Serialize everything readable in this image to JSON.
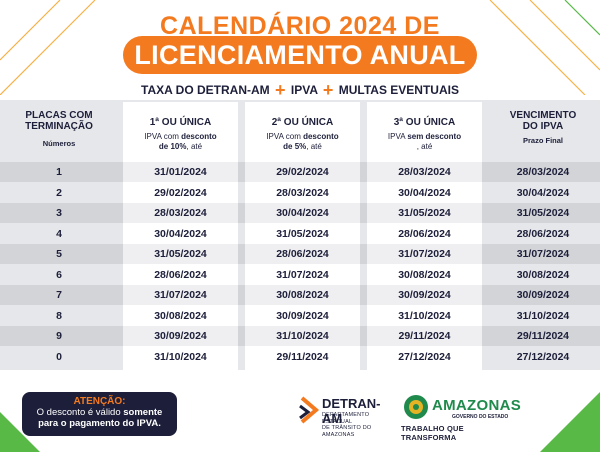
{
  "header": {
    "title_top": "CALENDÁRIO 2024 DE",
    "title_main": "LICENCIAMENTO ANUAL",
    "subtitle_parts": [
      "TAXA DO DETRAN-AM",
      "IPVA",
      "MULTAS EVENTUAIS"
    ],
    "plus": "+"
  },
  "columns": {
    "plate": {
      "title_l1": "PLACAS COM",
      "title_l2": "TERMINAÇÃO",
      "sub": "Números"
    },
    "c1": {
      "title": "1ª OU ÚNICA",
      "sub_pre": "IPVA com ",
      "sub_bold": "desconto",
      "sub_bold2": "de 10%",
      "sub_post": ", até"
    },
    "c2": {
      "title": "2ª OU ÚNICA",
      "sub_pre": "IPVA com ",
      "sub_bold": "desconto",
      "sub_bold2": "de 5%",
      "sub_post": ", até"
    },
    "c3": {
      "title": "3ª OU ÚNICA",
      "sub_pre": "IPVA ",
      "sub_bold": "sem desconto",
      "sub_bold2": "",
      "sub_post": ", até"
    },
    "venc": {
      "title_l1": "VENCIMENTO",
      "title_l2": "DO IPVA",
      "sub": "Prazo Final"
    }
  },
  "rows": [
    {
      "plate": "1",
      "c1": "31/01/2024",
      "c2": "29/02/2024",
      "c3": "28/03/2024",
      "venc": "28/03/2024"
    },
    {
      "plate": "2",
      "c1": "29/02/2024",
      "c2": "28/03/2024",
      "c3": "30/04/2024",
      "venc": "30/04/2024"
    },
    {
      "plate": "3",
      "c1": "28/03/2024",
      "c2": "30/04/2024",
      "c3": "31/05/2024",
      "venc": "31/05/2024"
    },
    {
      "plate": "4",
      "c1": "30/04/2024",
      "c2": "31/05/2024",
      "c3": "28/06/2024",
      "venc": "28/06/2024"
    },
    {
      "plate": "5",
      "c1": "31/05/2024",
      "c2": "28/06/2024",
      "c3": "31/07/2024",
      "venc": "31/07/2024"
    },
    {
      "plate": "6",
      "c1": "28/06/2024",
      "c2": "31/07/2024",
      "c3": "30/08/2024",
      "venc": "30/08/2024"
    },
    {
      "plate": "7",
      "c1": "31/07/2024",
      "c2": "30/08/2024",
      "c3": "30/09/2024",
      "venc": "30/09/2024"
    },
    {
      "plate": "8",
      "c1": "30/08/2024",
      "c2": "30/09/2024",
      "c3": "31/10/2024",
      "venc": "31/10/2024"
    },
    {
      "plate": "9",
      "c1": "30/09/2024",
      "c2": "31/10/2024",
      "c3": "29/11/2024",
      "venc": "29/11/2024"
    },
    {
      "plate": "0",
      "c1": "31/10/2024",
      "c2": "29/11/2024",
      "c3": "27/12/2024",
      "venc": "27/12/2024"
    }
  ],
  "footer": {
    "attention_title": "ATENÇÃO:",
    "attention_l1_pre": "O desconto é válido ",
    "attention_l1_bold": "somente",
    "attention_l2": "para o pagamento do IPVA.",
    "detran_name": "DETRAN-AM",
    "detran_sub_l1": "DEPARTAMENTO ESTADUAL",
    "detran_sub_l2": "DE TRÂNSITO DO AMAZONAS",
    "amazonas_name": "AMAZONAS",
    "amazonas_sub": "GOVERNO DO ESTADO",
    "slogan": "TRABALHO QUE TRANSFORMA"
  },
  "colors": {
    "orange": "#f47a20",
    "navy": "#1d1f3a",
    "green": "#58b947",
    "amazonas_green": "#1f8a4c",
    "gold": "#e6b325"
  }
}
